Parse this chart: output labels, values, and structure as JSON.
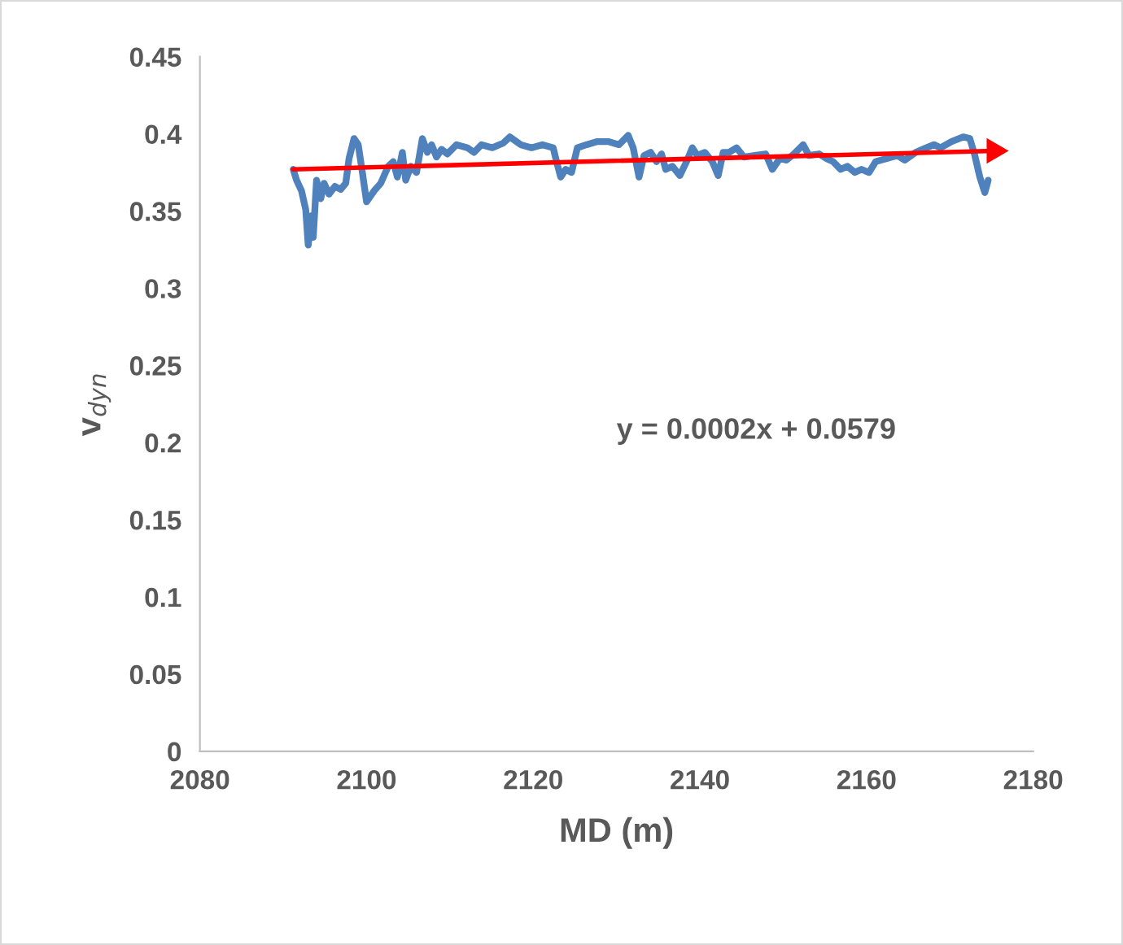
{
  "chart_data": {
    "type": "line",
    "xlabel": "MD (m)",
    "ylabel": "v$_{dyn}$",
    "xlim": [
      2080,
      2180
    ],
    "xticks": [
      2080,
      2100,
      2120,
      2140,
      2160,
      2180
    ],
    "ylim": [
      0,
      0.45
    ],
    "yticks": [
      0,
      0.05,
      0.1,
      0.15,
      0.2,
      0.25,
      0.3,
      0.35,
      0.4,
      0.45
    ],
    "annotations": [
      "y = 0.0002x + 0.0579"
    ],
    "series": [
      {
        "color": "#4f81bd",
        "x": [
          2091.2,
          2091.6,
          2092.2,
          2092.7,
          2093.0,
          2093.4,
          2093.6,
          2094.0,
          2094.5,
          2094.9,
          2095.5,
          2096.2,
          2096.9,
          2097.5,
          2097.9,
          2098.5,
          2099.0,
          2099.5,
          2100.0,
          2100.9,
          2101.7,
          2102.6,
          2103.2,
          2103.7,
          2104.3,
          2104.7,
          2105.3,
          2106.0,
          2106.7,
          2107.3,
          2107.8,
          2108.4,
          2109.0,
          2109.7,
          2110.8,
          2112.1,
          2112.9,
          2113.8,
          2115.1,
          2116.4,
          2117.2,
          2118.5,
          2119.8,
          2121.1,
          2122.4,
          2122.8,
          2123.3,
          2123.9,
          2124.6,
          2125.3,
          2126.4,
          2127.7,
          2129.0,
          2130.3,
          2131.4,
          2132.0,
          2132.7,
          2133.3,
          2134.1,
          2134.8,
          2135.4,
          2135.9,
          2136.7,
          2137.6,
          2138.4,
          2139.1,
          2139.7,
          2140.6,
          2141.5,
          2142.2,
          2142.8,
          2143.5,
          2144.4,
          2145.3,
          2146.6,
          2147.9,
          2148.7,
          2149.6,
          2150.4,
          2151.3,
          2152.4,
          2153.1,
          2154.3,
          2155.2,
          2156.0,
          2156.9,
          2157.7,
          2158.6,
          2159.4,
          2160.3,
          2161.1,
          2162.4,
          2163.7,
          2164.6,
          2165.9,
          2167.2,
          2168.1,
          2168.9,
          2170.2,
          2171.6,
          2172.4,
          2173.0,
          2173.6,
          2174.2,
          2174.6
        ],
        "values": [
          0.377,
          0.37,
          0.363,
          0.351,
          0.328,
          0.347,
          0.333,
          0.37,
          0.358,
          0.368,
          0.361,
          0.366,
          0.364,
          0.368,
          0.384,
          0.397,
          0.393,
          0.375,
          0.356,
          0.363,
          0.368,
          0.379,
          0.382,
          0.372,
          0.388,
          0.37,
          0.379,
          0.375,
          0.397,
          0.388,
          0.393,
          0.385,
          0.39,
          0.387,
          0.393,
          0.391,
          0.388,
          0.393,
          0.391,
          0.394,
          0.398,
          0.393,
          0.391,
          0.393,
          0.391,
          0.382,
          0.372,
          0.377,
          0.375,
          0.391,
          0.393,
          0.395,
          0.395,
          0.393,
          0.399,
          0.391,
          0.372,
          0.386,
          0.388,
          0.382,
          0.387,
          0.377,
          0.379,
          0.373,
          0.382,
          0.391,
          0.386,
          0.388,
          0.382,
          0.373,
          0.388,
          0.388,
          0.391,
          0.385,
          0.386,
          0.387,
          0.377,
          0.384,
          0.383,
          0.387,
          0.393,
          0.386,
          0.387,
          0.384,
          0.382,
          0.377,
          0.379,
          0.375,
          0.377,
          0.375,
          0.382,
          0.384,
          0.386,
          0.383,
          0.388,
          0.391,
          0.393,
          0.391,
          0.395,
          0.398,
          0.397,
          0.386,
          0.372,
          0.362,
          0.37
        ]
      },
      {
        "type": "line",
        "color": "#ff0000",
        "x": [
          2091.2,
          2175.3
        ],
        "values": [
          0.377,
          0.389
        ]
      }
    ]
  }
}
